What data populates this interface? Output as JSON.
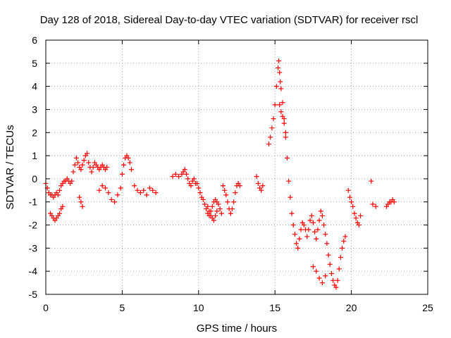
{
  "chart_data": {
    "type": "scatter",
    "title": "Day 128 of 2018, Sidereal Day-to-day VTEC variation (SDTVAR) for receiver rscl",
    "xlabel": "GPS time / hours",
    "ylabel": "SDTVAR / TECUs",
    "xlim": [
      0,
      25
    ],
    "ylim": [
      -5,
      6
    ],
    "xticks": [
      0,
      5,
      10,
      15,
      20,
      25
    ],
    "yticks": [
      -5,
      -4,
      -3,
      -2,
      -1,
      0,
      1,
      2,
      3,
      4,
      5,
      6
    ],
    "grid": true,
    "marker": "+",
    "series": [
      {
        "name": "SDTVAR",
        "color": "#ff0000",
        "x": [
          0.0,
          0.1,
          0.2,
          0.3,
          0.4,
          0.5,
          0.6,
          0.7,
          0.8,
          0.9,
          1.0,
          1.1,
          1.2,
          1.3,
          1.4,
          1.5,
          1.6,
          1.7,
          1.8,
          1.9,
          0.3,
          0.4,
          0.5,
          0.6,
          0.7,
          0.8,
          0.9,
          1.0,
          1.1,
          2.0,
          2.1,
          2.2,
          2.3,
          2.4,
          2.5,
          2.6,
          2.7,
          2.8,
          2.9,
          3.0,
          3.1,
          3.2,
          3.3,
          3.4,
          3.5,
          3.6,
          3.7,
          3.8,
          3.9,
          4.0,
          2.2,
          2.3,
          2.4,
          3.5,
          3.7,
          3.9,
          4.1,
          4.3,
          4.5,
          4.7,
          4.9,
          5.0,
          5.1,
          5.2,
          5.3,
          5.4,
          5.5,
          5.6,
          5.8,
          6.0,
          6.2,
          6.4,
          6.6,
          6.8,
          7.0,
          7.2,
          8.3,
          8.5,
          8.7,
          8.9,
          9.0,
          9.1,
          9.2,
          9.3,
          9.4,
          9.5,
          9.6,
          9.7,
          9.8,
          9.9,
          10.0,
          10.1,
          10.2,
          10.3,
          10.4,
          10.5,
          10.6,
          10.7,
          10.8,
          10.9,
          11.0,
          11.1,
          11.2,
          11.3,
          11.4,
          11.5,
          10.6,
          10.7,
          10.8,
          10.9,
          11.0,
          11.1,
          11.2,
          11.6,
          11.7,
          11.8,
          11.9,
          12.0,
          12.1,
          12.2,
          12.3,
          12.4,
          12.5,
          12.6,
          12.7,
          13.8,
          13.9,
          14.0,
          14.1,
          14.2,
          14.6,
          14.7,
          14.8,
          14.9,
          15.0,
          15.1,
          15.2,
          15.25,
          15.3,
          15.35,
          15.4,
          15.5,
          15.6,
          15.7,
          15.8,
          15.9,
          16.0,
          16.1,
          16.2,
          16.3,
          16.4,
          16.5,
          16.6,
          16.7,
          16.8,
          16.9,
          17.0,
          15.3,
          15.4,
          15.5,
          15.6,
          15.7,
          17.1,
          17.2,
          17.3,
          17.4,
          17.5,
          17.6,
          17.7,
          17.8,
          17.9,
          18.0,
          18.1,
          18.2,
          18.3,
          18.4,
          18.5,
          18.6,
          18.7,
          18.8,
          18.9,
          19.0,
          19.1,
          19.2,
          19.3,
          19.4,
          19.5,
          19.6,
          17.5,
          17.7,
          17.9,
          18.1,
          18.3,
          19.8,
          19.9,
          20.0,
          20.1,
          20.2,
          20.3,
          20.4,
          20.5,
          20.6,
          21.3,
          21.4,
          21.6,
          22.3,
          22.4,
          22.5,
          22.6,
          22.7,
          22.8
        ],
        "y": [
          -0.2,
          -0.4,
          -0.6,
          -0.7,
          -0.7,
          -0.8,
          -0.7,
          -0.6,
          -0.7,
          -0.5,
          -0.3,
          -0.2,
          -0.1,
          -0.1,
          0.0,
          -0.1,
          -0.2,
          -0.1,
          0.3,
          0.6,
          -1.5,
          -1.6,
          -1.7,
          -1.8,
          -1.7,
          -1.6,
          -1.5,
          -1.3,
          -1.2,
          0.9,
          0.7,
          0.5,
          0.4,
          0.6,
          0.8,
          1.0,
          1.1,
          0.7,
          0.5,
          0.3,
          0.5,
          0.7,
          0.6,
          0.5,
          0.4,
          0.5,
          0.6,
          0.5,
          0.4,
          0.5,
          -0.8,
          -1.0,
          -1.2,
          -0.5,
          -0.3,
          -0.4,
          -0.6,
          -0.9,
          -1.0,
          -0.7,
          -0.4,
          0.2,
          0.6,
          0.9,
          1.0,
          0.9,
          0.7,
          0.4,
          -0.3,
          -0.5,
          -0.6,
          -0.5,
          -0.7,
          -0.4,
          -0.5,
          -0.6,
          0.1,
          0.2,
          0.1,
          0.2,
          0.3,
          0.4,
          0.2,
          0.0,
          -0.2,
          -0.3,
          -0.1,
          0.0,
          -0.2,
          -0.2,
          -0.4,
          -0.6,
          -0.8,
          -0.9,
          -1.1,
          -1.3,
          -1.5,
          -1.6,
          -1.4,
          -1.2,
          -1.0,
          -0.9,
          -1.0,
          -1.1,
          -1.3,
          -1.5,
          -1.2,
          -1.4,
          -1.6,
          -1.7,
          -1.8,
          -1.6,
          -1.4,
          -0.3,
          -0.5,
          -0.7,
          -1.0,
          -1.3,
          -1.5,
          -1.3,
          -1.0,
          -0.6,
          -0.3,
          -0.2,
          -0.3,
          0.1,
          -0.2,
          -0.4,
          -0.5,
          -0.3,
          1.5,
          1.8,
          2.2,
          2.6,
          3.2,
          4.0,
          4.8,
          5.1,
          4.6,
          4.2,
          3.9,
          3.3,
          2.6,
          1.8,
          0.9,
          -0.1,
          -0.8,
          -1.5,
          -2.0,
          -2.4,
          -2.8,
          -3.0,
          -2.6,
          -2.2,
          -1.9,
          -2.0,
          -2.2,
          3.2,
          2.9,
          2.7,
          2.4,
          2.0,
          -2.5,
          -2.2,
          -1.8,
          -1.6,
          -1.9,
          -2.3,
          -2.6,
          -2.2,
          -1.8,
          -1.4,
          -1.6,
          -2.0,
          -2.4,
          -2.8,
          -3.3,
          -3.7,
          -4.1,
          -4.4,
          -4.6,
          -4.7,
          -4.4,
          -3.9,
          -3.4,
          -3.0,
          -2.7,
          -2.5,
          -3.8,
          -4.0,
          -4.3,
          -4.5,
          -4.2,
          -0.5,
          -0.8,
          -1.0,
          -1.2,
          -1.5,
          -1.7,
          -1.9,
          -2.0,
          -1.6,
          -0.1,
          -1.1,
          -1.2,
          -1.2,
          -1.1,
          -1.0,
          -1.0,
          -0.9,
          -1.0
        ]
      }
    ]
  }
}
